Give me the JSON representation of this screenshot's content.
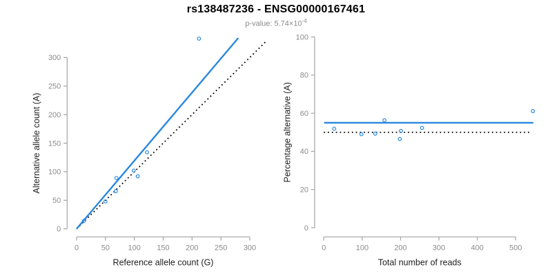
{
  "header": {
    "title": "rs138487236 - ENSG00000167461",
    "pvalue_prefix": "p-value: 5.74×10",
    "pvalue_exponent": "-4"
  },
  "colors": {
    "accent_blue": "#2787e0",
    "reference_line": "#000000",
    "axis_line": "#a3a3a3",
    "tick_label": "#8a8a8a",
    "axis_title": "#1f1f1f",
    "title": "#000000",
    "subtitle": "#8a8a8a",
    "background": "#ffffff"
  },
  "chart_data": [
    {
      "id": "allele-counts",
      "type": "scatter",
      "xlabel": "Reference allele count (G)",
      "ylabel": "Alternative allele count (A)",
      "xlim": [
        0,
        335
      ],
      "ylim": [
        0,
        335
      ],
      "xticks": [
        0,
        50,
        100,
        150,
        200,
        250,
        300
      ],
      "yticks": [
        0,
        50,
        100,
        150,
        200,
        250,
        300
      ],
      "grid": false,
      "legend": "none",
      "points": [
        [
          13,
          14
        ],
        [
          50,
          48
        ],
        [
          68,
          66
        ],
        [
          69,
          89
        ],
        [
          99,
          102
        ],
        [
          106,
          92
        ],
        [
          122,
          134
        ],
        [
          212,
          333
        ]
      ],
      "fit_line": {
        "style": "solid",
        "points": [
          [
            0,
            0
          ],
          [
            280,
            334
          ]
        ]
      },
      "reference_line": {
        "style": "dotted",
        "points": [
          [
            0,
            0
          ],
          [
            330,
            330
          ]
        ]
      }
    },
    {
      "id": "percentage-vs-coverage",
      "type": "scatter",
      "xlabel": "Total number of reads",
      "ylabel": "Percentage alternative (A)",
      "xlim": [
        0,
        555
      ],
      "ylim": [
        0,
        100
      ],
      "xticks": [
        0,
        100,
        200,
        300,
        400,
        500
      ],
      "yticks": [
        0,
        20,
        40,
        60,
        80,
        100
      ],
      "grid": false,
      "legend": "none",
      "points": [
        [
          27,
          51.9
        ],
        [
          98,
          49.0
        ],
        [
          134,
          49.3
        ],
        [
          158,
          56.3
        ],
        [
          201,
          50.7
        ],
        [
          198,
          46.5
        ],
        [
          256,
          52.3
        ],
        [
          545,
          61.1
        ]
      ],
      "fit_line": {
        "style": "solid",
        "points": [
          [
            1,
            55
          ],
          [
            546,
            55
          ]
        ]
      },
      "reference_line": {
        "style": "dotted",
        "points": [
          [
            0,
            50
          ],
          [
            537,
            50
          ]
        ]
      }
    }
  ]
}
